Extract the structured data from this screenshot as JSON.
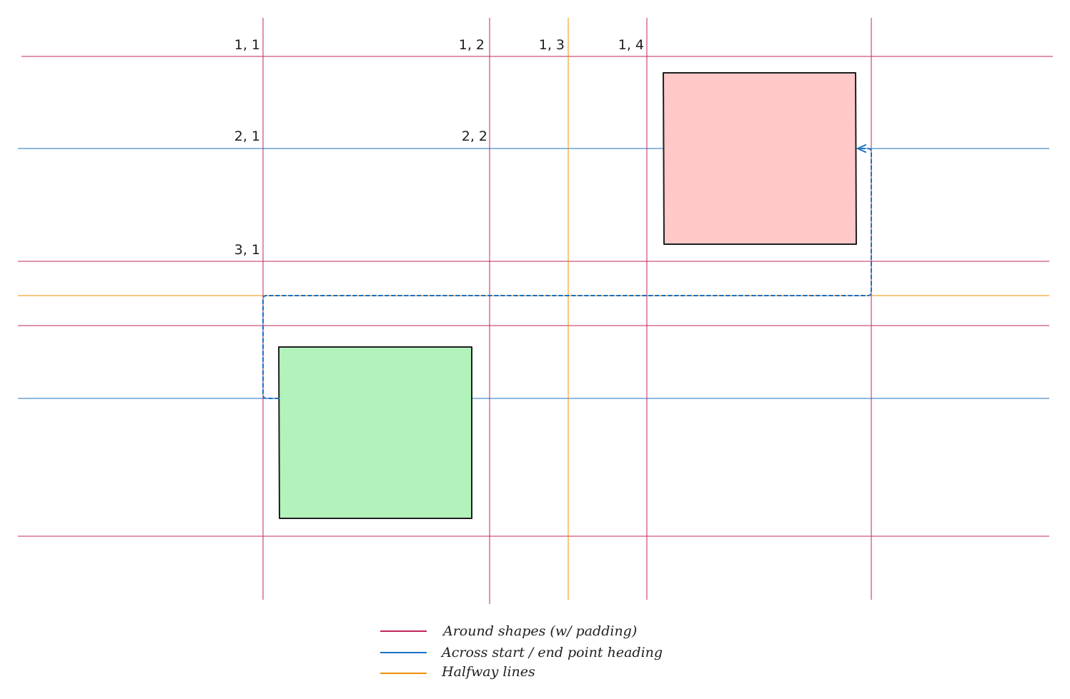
{
  "colors": {
    "around_shapes": "#c2255c",
    "across_heading": "#1971c2",
    "halfway": "#f08c00",
    "connector": "#1971c2",
    "shape_stroke": "#1e1e1e",
    "start_shape_fill": "#b2f2bb",
    "end_shape_fill": "#ffc9c9"
  },
  "grid_labels": {
    "r1c1": "1, 1",
    "r1c2": "1, 2",
    "r1c3": "1, 3",
    "r1c4": "1, 4",
    "r2c1": "2, 1",
    "r2c2": "2, 2",
    "r3c1": "3, 1"
  },
  "legend": {
    "around_shapes": "Around shapes (w/ padding)",
    "across_heading": "Across start / end point heading",
    "halfway": "Halfway lines"
  }
}
